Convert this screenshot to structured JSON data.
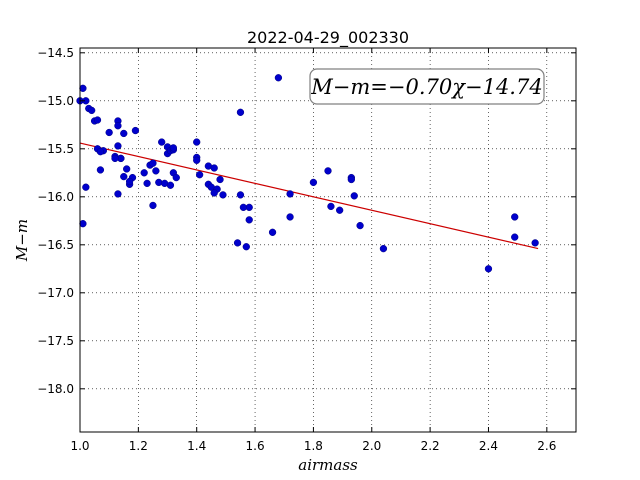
{
  "chart_data": {
    "type": "scatter",
    "title": "2022-04-29_002330",
    "xlabel": "airmass",
    "ylabel": "M−m",
    "xlim": [
      1.0,
      2.7
    ],
    "ylim": [
      -18.45,
      -14.45
    ],
    "y_inverted": true,
    "grid": true,
    "x_ticks": [
      1.0,
      1.2,
      1.4,
      1.6,
      1.8,
      2.0,
      2.2,
      2.4,
      2.6
    ],
    "x_tick_labels": [
      "1.0",
      "1.2",
      "1.4",
      "1.6",
      "1.8",
      "2.0",
      "2.2",
      "2.4",
      "2.6"
    ],
    "y_ticks": [
      -14.5,
      -15.0,
      -15.5,
      -16.0,
      -16.5,
      -17.0,
      -17.5,
      -18.0
    ],
    "y_tick_labels": [
      "−14.5",
      "−15.0",
      "−15.5",
      "−16.0",
      "−16.5",
      "−17.0",
      "−17.5",
      "−18.0"
    ],
    "annotation": "M−m=−0.70χ−14.74",
    "points_color": "#0000cc",
    "fit_color": "#cc0000",
    "fit": {
      "slope": -0.7,
      "intercept": -14.74,
      "x_range": [
        1.0,
        2.57
      ]
    },
    "series": [
      {
        "x": [
          1.0,
          1.01,
          1.02,
          1.03,
          1.04,
          1.05,
          1.06,
          1.02,
          1.01,
          1.06,
          1.08,
          1.07,
          1.07,
          1.1,
          1.12,
          1.13,
          1.13,
          1.14,
          1.13,
          1.15,
          1.14,
          1.16,
          1.17,
          1.13,
          1.19,
          1.18,
          1.17,
          1.15,
          1.12,
          1.22,
          1.23,
          1.24,
          1.26,
          1.25,
          1.27,
          1.29,
          1.3,
          1.3,
          1.31,
          1.31,
          1.32,
          1.33,
          1.28,
          1.32,
          1.32,
          1.4,
          1.4,
          1.41,
          1.44,
          1.44,
          1.45,
          1.46,
          1.47,
          1.48,
          1.49,
          1.46,
          1.4,
          1.55,
          1.55,
          1.58,
          1.58,
          1.56,
          1.57,
          1.54,
          1.68,
          1.66,
          1.72,
          1.72,
          1.8,
          1.85,
          1.86,
          1.89,
          1.93,
          1.93,
          1.94,
          1.96,
          2.04,
          2.4,
          2.49,
          2.49,
          2.56,
          1.25
        ],
        "y": [
          -15.0,
          -14.87,
          -15.0,
          -15.08,
          -15.1,
          -15.21,
          -15.2,
          -15.9,
          -16.28,
          -15.5,
          -15.52,
          -15.53,
          -15.72,
          -15.33,
          -15.58,
          -15.21,
          -15.26,
          -15.6,
          -15.47,
          -15.34,
          -15.6,
          -15.71,
          -15.87,
          -15.97,
          -15.31,
          -15.8,
          -15.84,
          -15.79,
          -15.6,
          -15.75,
          -15.86,
          -15.67,
          -15.73,
          -15.65,
          -15.85,
          -15.86,
          -15.48,
          -15.55,
          -15.52,
          -15.88,
          -15.75,
          -15.8,
          -15.43,
          -15.51,
          -15.49,
          -15.43,
          -15.59,
          -15.77,
          -15.68,
          -15.87,
          -15.9,
          -15.7,
          -15.92,
          -15.82,
          -15.98,
          -15.96,
          -15.62,
          -15.12,
          -15.98,
          -16.11,
          -16.24,
          -16.11,
          -16.52,
          -16.48,
          -14.76,
          -16.37,
          -15.97,
          -16.21,
          -15.85,
          -15.73,
          -16.1,
          -16.14,
          -15.8,
          -15.82,
          -15.99,
          -16.3,
          -16.54,
          -16.75,
          -16.42,
          -16.21,
          -16.48,
          -16.09
        ]
      }
    ]
  }
}
